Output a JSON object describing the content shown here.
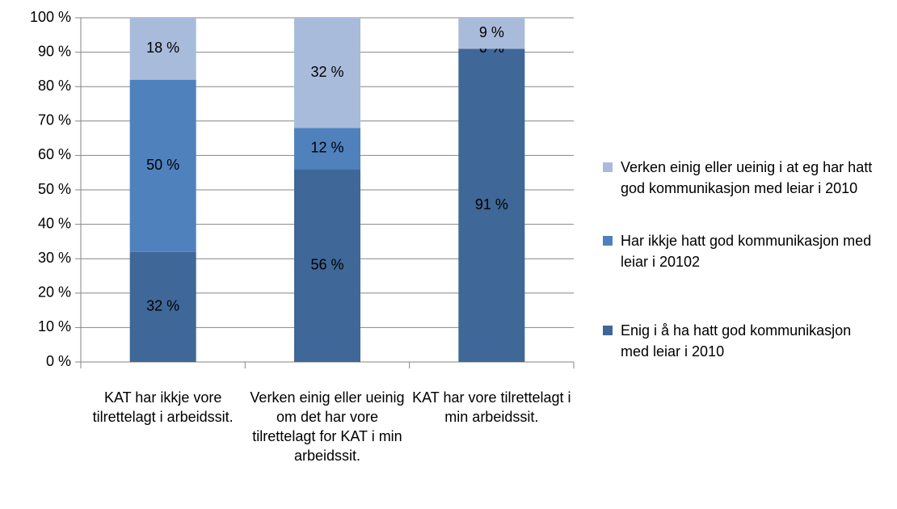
{
  "chart_data": {
    "type": "stacked_bar",
    "categories": [
      "KAT har ikkje vore tilrettelagt i arbeidssit.",
      "Verken einig eller ueinig om det har vore tilrettelagt for KAT i min arbeidssit.",
      "KAT har vore tilrettelagt i min arbeidssit."
    ],
    "series": [
      {
        "name": "Enig i å ha hatt god kommunikasjon med leiar i 2010",
        "color": "#3f6797",
        "values": [
          32,
          56,
          91
        ],
        "value_labels": [
          "32 %",
          "56 %",
          "91 %"
        ]
      },
      {
        "name": "Har ikkje hatt god kommunikasjon med leiar i 20102",
        "color": "#4f81bd",
        "values": [
          50,
          12,
          0
        ],
        "value_labels": [
          "50 %",
          "12 %",
          "0 %"
        ]
      },
      {
        "name": "Verken einig eller ueinig i at eg har hatt god kommunikasjon med leiar i 2010",
        "color": "#a9bbdb",
        "values": [
          18,
          32,
          9
        ],
        "value_labels": [
          "18 %",
          "32 %",
          "9 %"
        ]
      }
    ],
    "ylim": [
      0,
      100
    ],
    "yticks": [
      {
        "value": 0,
        "label": "0 %"
      },
      {
        "value": 10,
        "label": "10 %"
      },
      {
        "value": 20,
        "label": "20 %"
      },
      {
        "value": 30,
        "label": "30 %"
      },
      {
        "value": 40,
        "label": "40 %"
      },
      {
        "value": 50,
        "label": "50 %"
      },
      {
        "value": 60,
        "label": "60 %"
      },
      {
        "value": 70,
        "label": "70 %"
      },
      {
        "value": 80,
        "label": "80 %"
      },
      {
        "value": 90,
        "label": "90 %"
      },
      {
        "value": 100,
        "label": "100 %"
      }
    ],
    "grid": true,
    "legend": "right"
  }
}
